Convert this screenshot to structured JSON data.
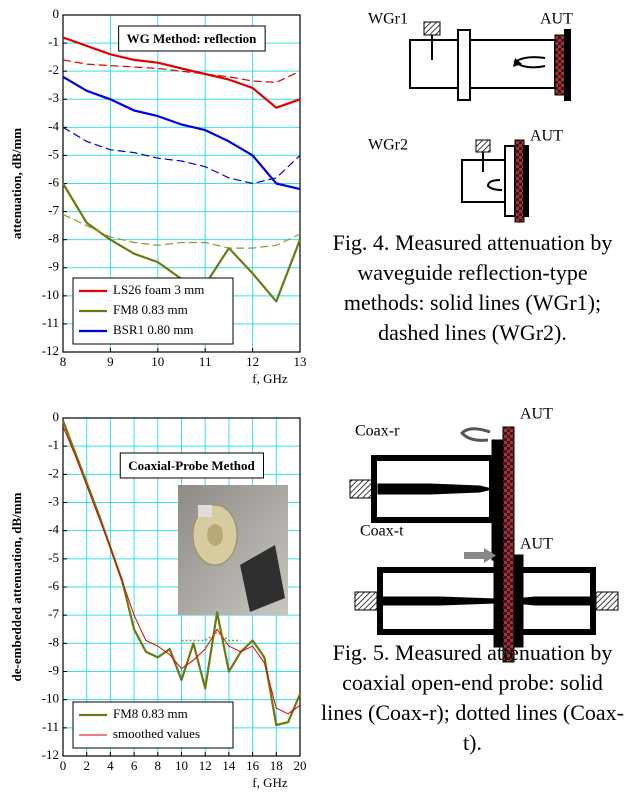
{
  "chart_data": [
    {
      "type": "line",
      "title": "WG Method: reflection",
      "ylabel": "attenuation, dB/mm",
      "xlabel": "f, GHz",
      "xlim": [
        8,
        13
      ],
      "xticks": [
        8,
        9,
        10,
        11,
        12,
        13
      ],
      "ylim": [
        -12,
        0
      ],
      "yticks": [
        0,
        -1,
        -2,
        -3,
        -4,
        -5,
        -6,
        -7,
        -8,
        -9,
        -10,
        -11,
        -12
      ],
      "grid": true,
      "legend": "lower left",
      "x": [
        8,
        8.5,
        9,
        9.5,
        10,
        10.5,
        11,
        11.5,
        12,
        12.5,
        13
      ],
      "series": [
        {
          "name": "LS26 foam 3 mm",
          "color": "#e00000",
          "style": "solid",
          "values": [
            -0.8,
            -1.1,
            -1.4,
            -1.6,
            -1.7,
            -1.9,
            -2.1,
            -2.3,
            -2.6,
            -3.3,
            -3.0
          ]
        },
        {
          "color": "#e00000",
          "style": "dashed",
          "values": [
            -1.6,
            -1.75,
            -1.8,
            -1.85,
            -1.9,
            -2.0,
            -2.1,
            -2.2,
            -2.35,
            -2.4,
            -2.0
          ]
        },
        {
          "name": "FM8 0.83 mm",
          "color": "#6b7a12",
          "style": "solid",
          "values": [
            -6.0,
            -7.4,
            -8.0,
            -8.5,
            -8.8,
            -9.4,
            -9.6,
            -8.3,
            -9.2,
            -10.2,
            -8.0
          ]
        },
        {
          "color": "#8a9a30",
          "style": "dashed",
          "values": [
            -7.1,
            -7.5,
            -7.9,
            -8.1,
            -8.2,
            -8.1,
            -8.1,
            -8.3,
            -8.3,
            -8.2,
            -7.8
          ]
        },
        {
          "name": "BSR1 0.80 mm",
          "color": "#0000e0",
          "style": "solid",
          "values": [
            -2.2,
            -2.7,
            -3.0,
            -3.4,
            -3.6,
            -3.9,
            -4.1,
            -4.5,
            -5.0,
            -6.0,
            -6.2
          ]
        },
        {
          "color": "#0000e0",
          "style": "dashed",
          "values": [
            -4.0,
            -4.5,
            -4.8,
            -4.9,
            -5.1,
            -5.2,
            -5.4,
            -5.8,
            -6.0,
            -5.8,
            -5.0
          ]
        }
      ]
    },
    {
      "type": "line",
      "title": "Coaxial-Probe Method",
      "ylabel": "de-embedded attenuation, dB/mm",
      "xlabel": "f, GHz",
      "xlim": [
        0,
        20
      ],
      "xticks": [
        0,
        2,
        4,
        6,
        8,
        10,
        12,
        14,
        16,
        18,
        20
      ],
      "ylim": [
        -12,
        0
      ],
      "yticks": [
        0,
        -1,
        -2,
        -3,
        -4,
        -5,
        -6,
        -7,
        -8,
        -9,
        -10,
        -11,
        -12
      ],
      "grid": true,
      "legend": "lower left",
      "x": [
        0,
        1,
        2,
        3,
        4,
        5,
        6,
        7,
        8,
        9,
        10,
        11,
        12,
        13,
        14,
        15,
        16,
        17,
        18,
        19,
        20
      ],
      "series": [
        {
          "name": "FM8 0.83 mm",
          "color": "#6b7a12",
          "style": "solid",
          "values": [
            -0.1,
            -1.2,
            -2.3,
            -3.4,
            -4.6,
            -5.8,
            -7.5,
            -8.3,
            -8.5,
            -8.2,
            -9.3,
            -8.0,
            -9.6,
            -6.9,
            -9.0,
            -8.3,
            -7.9,
            -8.5,
            -10.9,
            -10.8,
            -9.8
          ]
        },
        {
          "name": "smoothed values",
          "color": "#e00000",
          "style": "thin",
          "values": [
            -0.3,
            -1.3,
            -2.4,
            -3.5,
            -4.6,
            -5.8,
            -7.0,
            -7.9,
            -8.1,
            -8.4,
            -8.9,
            -8.6,
            -8.2,
            -7.5,
            -8.1,
            -8.3,
            -8.1,
            -8.7,
            -10.3,
            -10.5,
            -10.2
          ]
        },
        {
          "color": "#8a9a30",
          "style": "dotted",
          "values": [
            null,
            null,
            null,
            null,
            null,
            null,
            null,
            null,
            null,
            null,
            -7.9,
            -7.9,
            -7.9,
            -7.6,
            -7.9,
            -7.9,
            null,
            null,
            null,
            null,
            null
          ]
        }
      ]
    }
  ],
  "figure4": {
    "labels": {
      "wgr1": "WGr1",
      "aut1": "AUT",
      "wgr2": "WGr2",
      "aut2": "AUT"
    },
    "caption": "Fig. 4. Measured attenuation by waveguide reflection-type methods: solid lines (WGr1); dashed lines (WGr2)."
  },
  "figure5": {
    "labels": {
      "coaxr": "Coax-r",
      "aut1": "AUT",
      "coaxt": "Coax-t",
      "aut2": "AUT"
    },
    "caption": "Fig. 5. Measured attenuation by coaxial open-end probe: solid lines (Coax-r); dotted lines (Coax-t)."
  }
}
